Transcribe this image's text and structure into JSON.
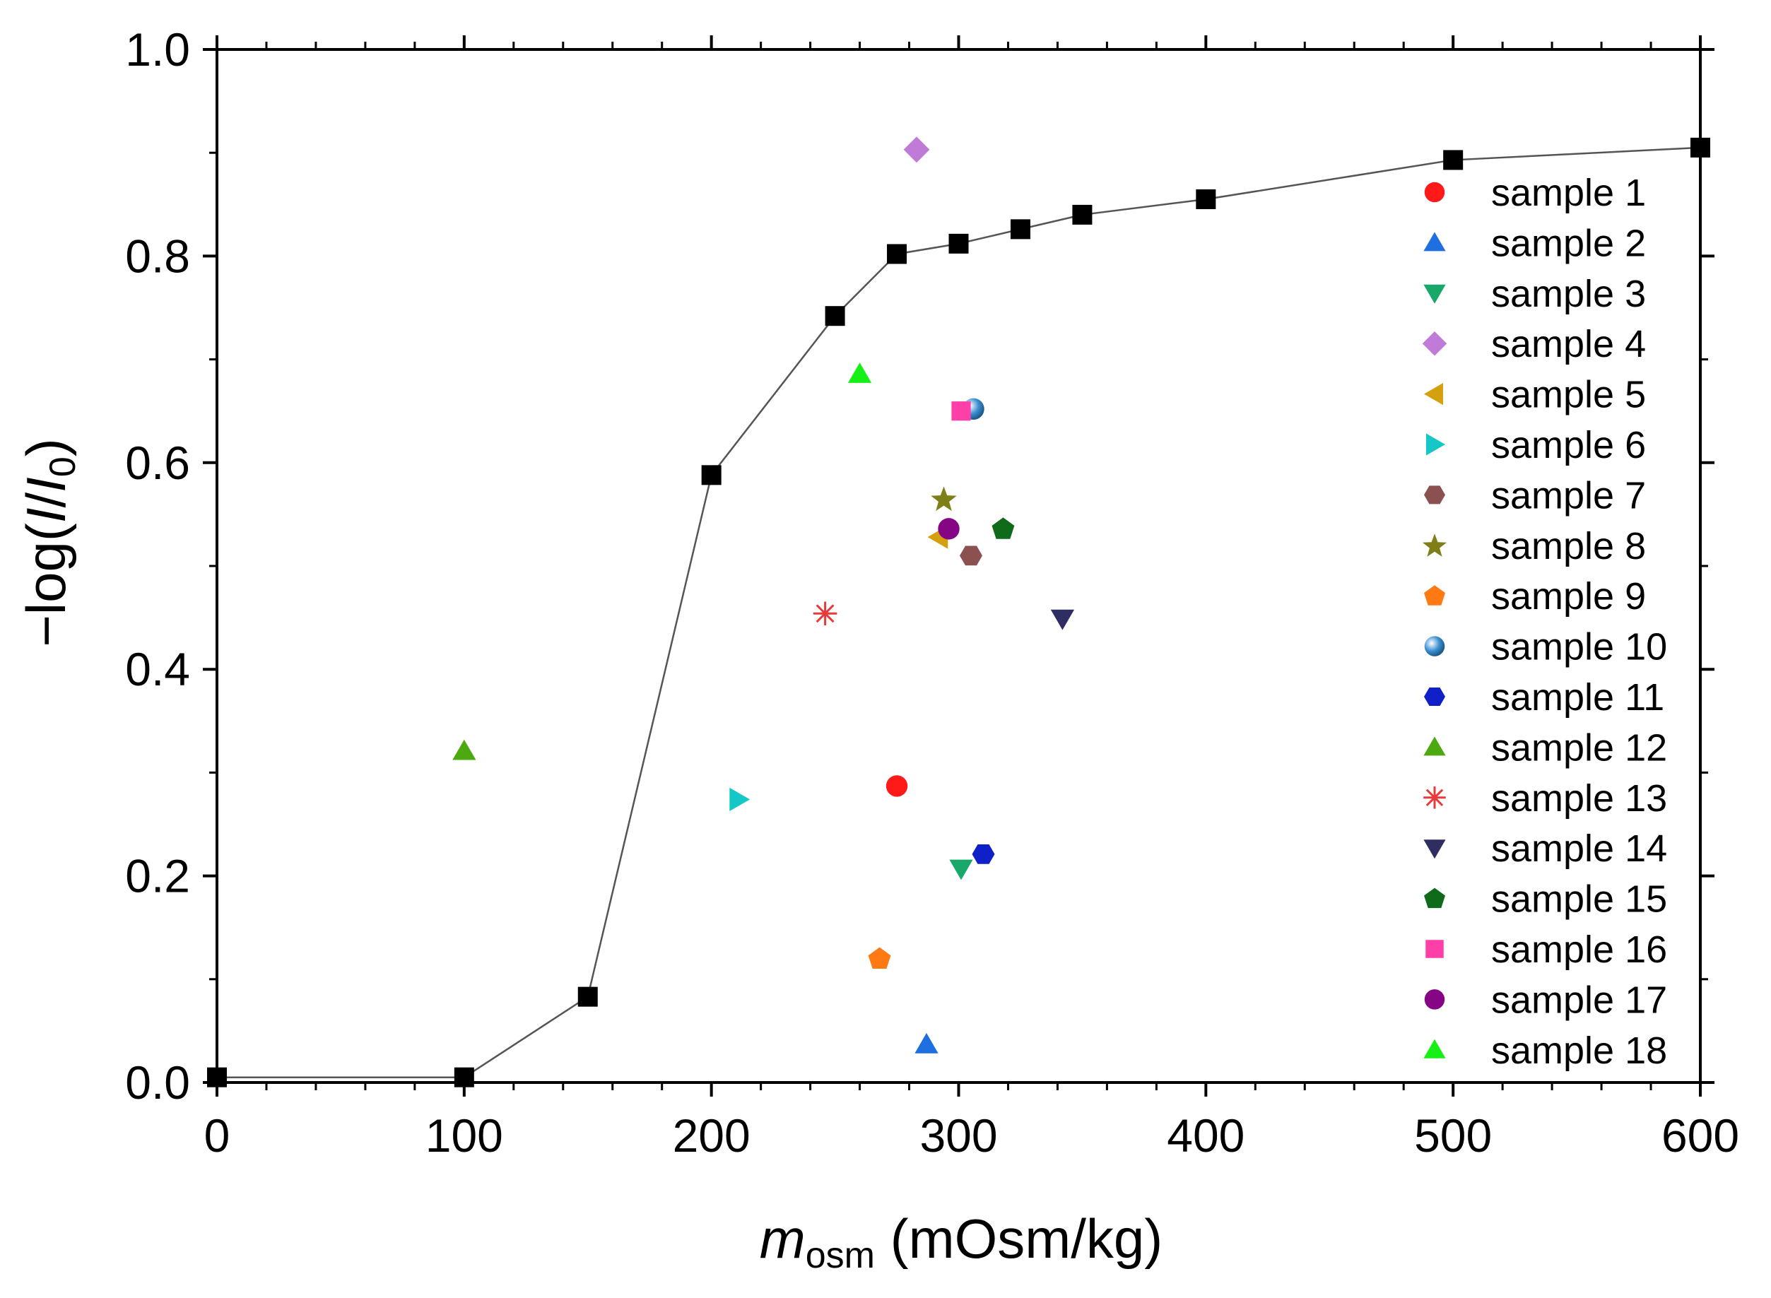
{
  "chart_data": {
    "type": "scatter",
    "title": "",
    "xlabel": {
      "italic": "m",
      "sub": "osm",
      "rest": " (mOsm/kg)"
    },
    "ylabel": {
      "pre": "−log(",
      "i1": "I",
      "slash": "/",
      "i2": "I",
      "sub": "0",
      "post": ")"
    },
    "xlim": [
      0,
      600
    ],
    "ylim": [
      0,
      1.0
    ],
    "xticks": [
      0,
      100,
      200,
      300,
      400,
      500,
      600
    ],
    "xtick_labels": [
      "0",
      "100",
      "200",
      "300",
      "400",
      "500",
      "600"
    ],
    "yticks": [
      0.0,
      0.2,
      0.4,
      0.6,
      0.8,
      1.0
    ],
    "ytick_labels": [
      "0.0",
      "0.2",
      "0.4",
      "0.6",
      "0.8",
      "1.0"
    ],
    "grid": false,
    "legend_position": "right",
    "calibration_curve": {
      "marker": "square",
      "color": "#000000",
      "line_color": "#555555",
      "points": [
        {
          "x": 0,
          "y": 0.005
        },
        {
          "x": 100,
          "y": 0.005
        },
        {
          "x": 150,
          "y": 0.083
        },
        {
          "x": 200,
          "y": 0.588
        },
        {
          "x": 250,
          "y": 0.742
        },
        {
          "x": 275,
          "y": 0.802
        },
        {
          "x": 300,
          "y": 0.812
        },
        {
          "x": 325,
          "y": 0.826
        },
        {
          "x": 350,
          "y": 0.84
        },
        {
          "x": 400,
          "y": 0.855
        },
        {
          "x": 500,
          "y": 0.893
        },
        {
          "x": 600,
          "y": 0.905
        }
      ]
    },
    "series": [
      {
        "name": "sample 1",
        "x": 275,
        "y": 0.287,
        "marker": "circle",
        "color": "#ff1a1a"
      },
      {
        "name": "sample 2",
        "x": 287,
        "y": 0.037,
        "marker": "triangle-up",
        "color": "#1f6fe0"
      },
      {
        "name": "sample 3",
        "x": 301,
        "y": 0.207,
        "marker": "triangle-down",
        "color": "#17a86a"
      },
      {
        "name": "sample 4",
        "x": 283,
        "y": 0.903,
        "marker": "diamond",
        "color": "#c07ad8"
      },
      {
        "name": "sample 5",
        "x": 292,
        "y": 0.528,
        "marker": "triangle-left",
        "color": "#d4a00e"
      },
      {
        "name": "sample 6",
        "x": 211,
        "y": 0.274,
        "marker": "triangle-right",
        "color": "#16c7c7"
      },
      {
        "name": "sample 7",
        "x": 305,
        "y": 0.51,
        "marker": "hexagon",
        "color": "#8b5050"
      },
      {
        "name": "sample 8",
        "x": 294,
        "y": 0.565,
        "marker": "star",
        "color": "#7f7f18"
      },
      {
        "name": "sample 9",
        "x": 268,
        "y": 0.12,
        "marker": "pentagon",
        "color": "#ff7a12"
      },
      {
        "name": "sample 10",
        "x": 306,
        "y": 0.652,
        "marker": "sphere",
        "color": "#3b8fd0"
      },
      {
        "name": "sample 11",
        "x": 310,
        "y": 0.221,
        "marker": "hexagon",
        "color": "#1020c8"
      },
      {
        "name": "sample 12",
        "x": 100,
        "y": 0.321,
        "marker": "triangle-up",
        "color": "#4caa10"
      },
      {
        "name": "sample 13",
        "x": 246,
        "y": 0.454,
        "marker": "asterisk",
        "color": "#e83a3a"
      },
      {
        "name": "sample 14",
        "x": 342,
        "y": 0.449,
        "marker": "triangle-down",
        "color": "#2e2e62"
      },
      {
        "name": "sample 15",
        "x": 318,
        "y": 0.536,
        "marker": "pentagon",
        "color": "#0f6a1a"
      },
      {
        "name": "sample 16",
        "x": 301,
        "y": 0.65,
        "marker": "square",
        "color": "#ff3fa8"
      },
      {
        "name": "sample 17",
        "x": 296,
        "y": 0.536,
        "marker": "circle",
        "color": "#850585"
      },
      {
        "name": "sample 18",
        "x": 260,
        "y": 0.686,
        "marker": "triangle-up",
        "color": "#17f017"
      }
    ]
  }
}
